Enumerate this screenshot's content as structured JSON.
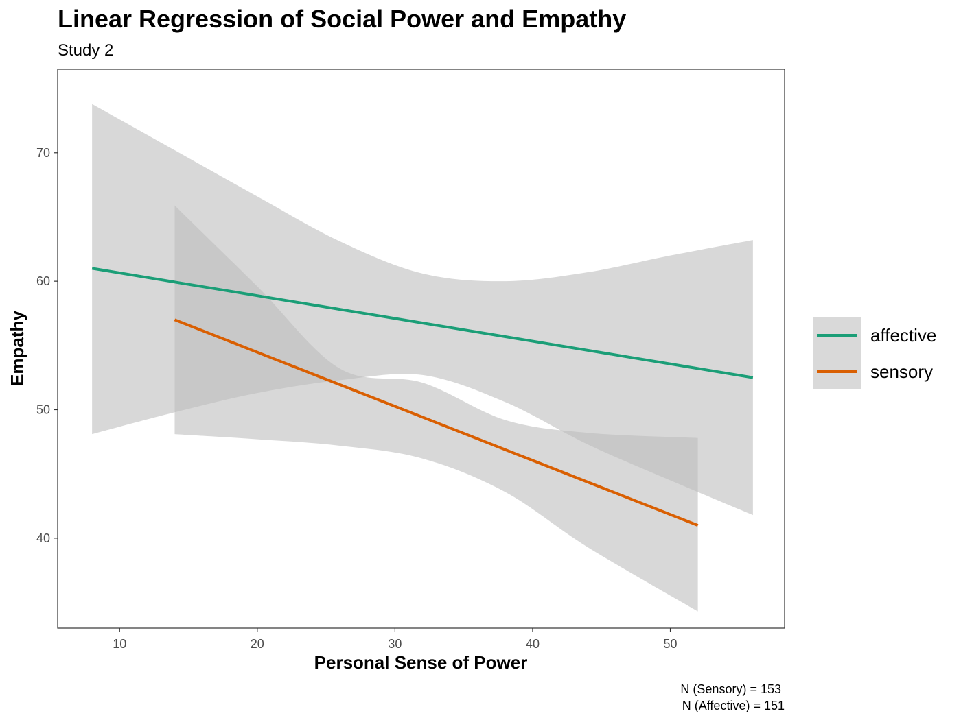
{
  "chart_data": {
    "type": "line",
    "title": "Linear Regression of Social Power and Empathy",
    "subtitle": "Study 2",
    "xlabel": "Personal Sense of Power",
    "ylabel": "Empathy",
    "xlim": [
      5.5,
      58.3
    ],
    "ylim": [
      33.0,
      76.5
    ],
    "x_ticks": [
      10,
      20,
      30,
      40,
      50
    ],
    "y_ticks": [
      40,
      50,
      60,
      70
    ],
    "grid": false,
    "legend_position": "right",
    "series": [
      {
        "name": "affective",
        "color": "#1b9e77",
        "x": [
          8,
          56
        ],
        "y": [
          61.0,
          52.5
        ],
        "band": {
          "x": [
            8,
            14,
            20,
            26,
            32,
            38,
            44,
            50,
            56
          ],
          "upper": [
            73.8,
            70.2,
            66.6,
            63.1,
            60.6,
            60.0,
            60.7,
            62.0,
            63.2
          ],
          "lower": [
            48.1,
            49.8,
            51.3,
            52.3,
            52.7,
            50.6,
            47.3,
            44.5,
            41.8
          ]
        }
      },
      {
        "name": "sensory",
        "color": "#d95f02",
        "x": [
          14,
          52
        ],
        "y": [
          57.0,
          41.0
        ],
        "band": {
          "x": [
            14,
            20,
            26,
            32,
            38,
            44,
            52
          ],
          "upper": [
            65.9,
            59.6,
            53.2,
            52.1,
            49.2,
            48.2,
            47.8
          ],
          "lower": [
            48.1,
            47.7,
            47.2,
            46.2,
            43.6,
            39.3,
            34.3
          ]
        }
      }
    ],
    "ribbon_color": "#bebebe",
    "ribbon_opacity": 0.6,
    "caption_lines": [
      "N (Sensory) = 153",
      "N (Affective) =  151"
    ]
  }
}
